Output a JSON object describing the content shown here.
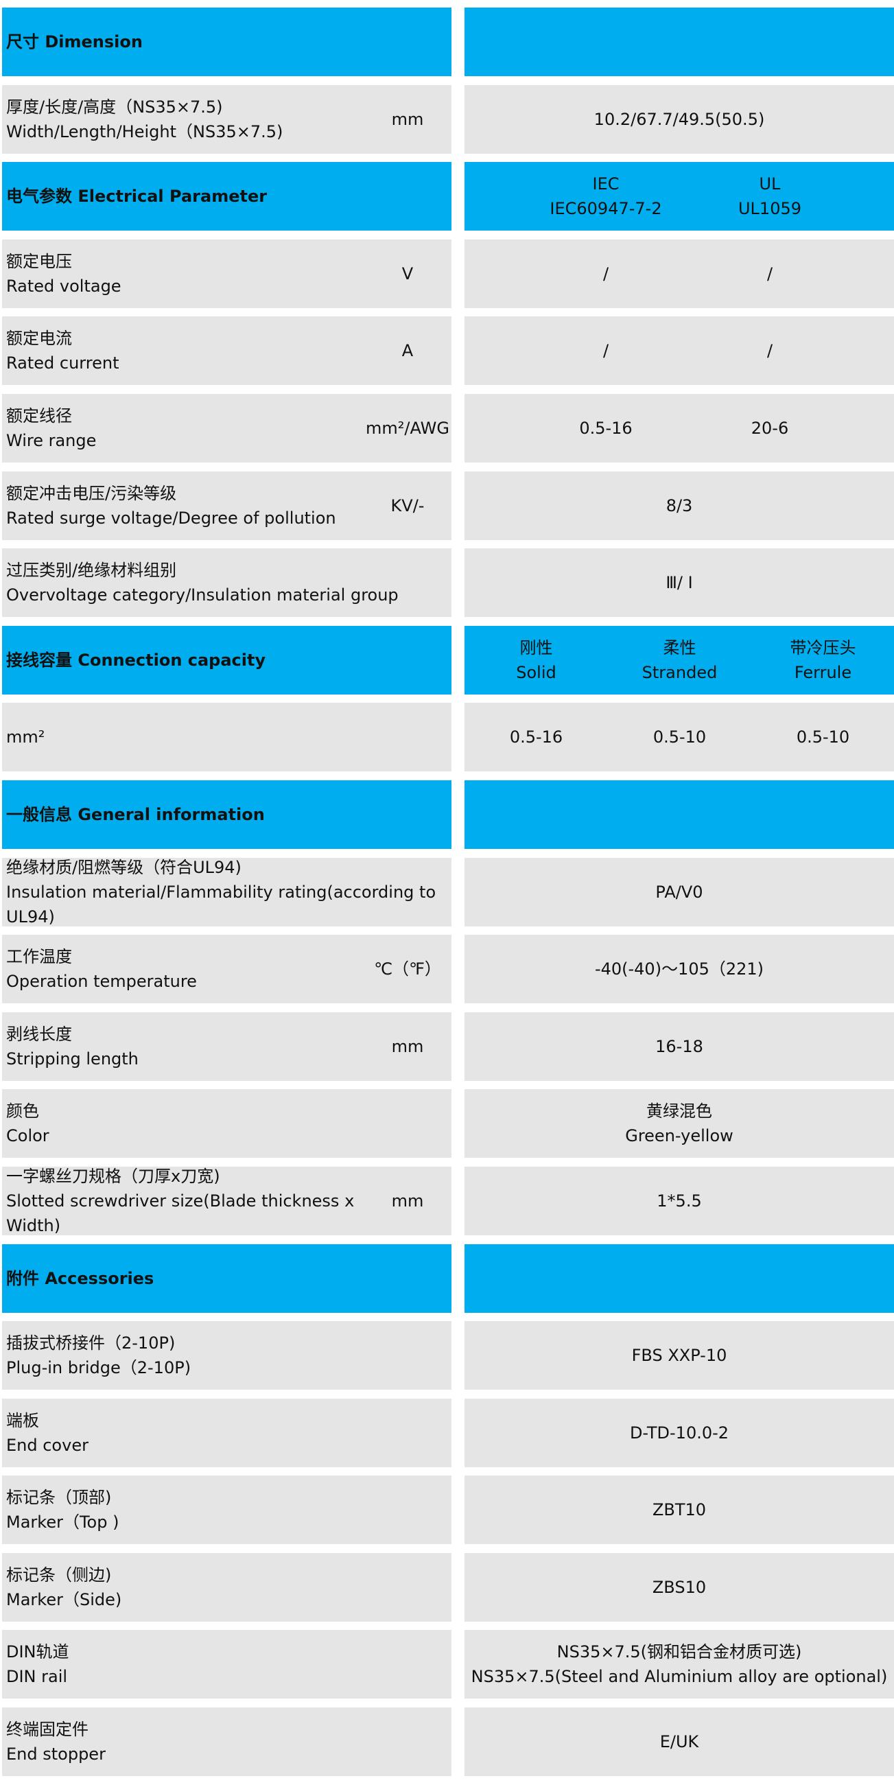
{
  "colors": {
    "header_bg": "#00AEEF",
    "row_bg": "#E6E5E6"
  },
  "rows": [
    {
      "type": "header",
      "label": [
        "尺寸 Dimension"
      ],
      "values": []
    },
    {
      "type": "data",
      "label": [
        "厚度/长度/高度（NS35×7.5)",
        "Width/Length/Height（NS35×7.5)"
      ],
      "unit": "mm",
      "values": [
        [
          "10.2/67.7/49.5(50.5)"
        ]
      ]
    },
    {
      "type": "header",
      "label": [
        "电气参数 Electrical Parameter"
      ],
      "layout": "two",
      "values": [
        [
          "IEC",
          "IEC60947-7-2"
        ],
        [
          "UL",
          "UL1059"
        ]
      ]
    },
    {
      "type": "data",
      "label": [
        "额定电压",
        "Rated voltage"
      ],
      "unit": "V",
      "layout": "two",
      "values": [
        [
          "/"
        ],
        [
          "/"
        ]
      ]
    },
    {
      "type": "data",
      "label": [
        "额定电流",
        "Rated current"
      ],
      "unit": "A",
      "layout": "two",
      "values": [
        [
          "/"
        ],
        [
          "/"
        ]
      ]
    },
    {
      "type": "data",
      "label": [
        "额定线径",
        "Wire range"
      ],
      "unit": "mm²/AWG",
      "layout": "two",
      "values": [
        [
          "0.5-16"
        ],
        [
          "20-6"
        ]
      ]
    },
    {
      "type": "data",
      "label": [
        "额定冲击电压/污染等级",
        "Rated surge voltage/Degree of pollution"
      ],
      "unit": "KV/-",
      "values": [
        [
          "8/3"
        ]
      ]
    },
    {
      "type": "data",
      "label": [
        "过压类别/绝缘材料组别",
        "Overvoltage category/Insulation material group"
      ],
      "values": [
        [
          "Ⅲ/ Ⅰ"
        ]
      ]
    },
    {
      "type": "header",
      "label": [
        "接线容量 Connection capacity"
      ],
      "layout": "three",
      "values": [
        [
          "刚性",
          "Solid"
        ],
        [
          "柔性",
          "Stranded"
        ],
        [
          "带冷压头",
          "Ferrule"
        ]
      ]
    },
    {
      "type": "data",
      "label": [
        "mm²"
      ],
      "layout": "three",
      "values": [
        [
          "0.5-16"
        ],
        [
          "0.5-10"
        ],
        [
          "0.5-10"
        ]
      ]
    },
    {
      "type": "header",
      "label": [
        "一般信息 General information"
      ],
      "values": []
    },
    {
      "type": "data",
      "label": [
        "绝缘材质/阻燃等级（符合UL94)",
        "Insulation material/Flammability rating(according to UL94)"
      ],
      "values": [
        [
          "PA/V0"
        ]
      ]
    },
    {
      "type": "data",
      "label": [
        "工作温度",
        "Operation temperature"
      ],
      "unit": "℃（℉）",
      "values": [
        [
          "-40(-40)～105（221)"
        ]
      ]
    },
    {
      "type": "data",
      "label": [
        "剥线长度",
        "Stripping length"
      ],
      "unit": "mm",
      "values": [
        [
          "16-18"
        ]
      ]
    },
    {
      "type": "data",
      "label": [
        "颜色",
        "Color"
      ],
      "values": [
        [
          "黄绿混色",
          "Green-yellow"
        ]
      ]
    },
    {
      "type": "data",
      "label": [
        "一字螺丝刀规格（刀厚x刀宽)",
        "Slotted screwdriver size(Blade thickness x Width)"
      ],
      "unit": "mm",
      "values": [
        [
          "1*5.5"
        ]
      ]
    },
    {
      "type": "header",
      "label": [
        "附件 Accessories"
      ],
      "values": []
    },
    {
      "type": "data",
      "label": [
        "插拔式桥接件（2-10P)",
        "Plug-in bridge（2-10P)"
      ],
      "values": [
        [
          "FBS XXP-10"
        ]
      ]
    },
    {
      "type": "data",
      "label": [
        "端板",
        "End cover"
      ],
      "values": [
        [
          "D-TD-10.0-2"
        ]
      ]
    },
    {
      "type": "data",
      "label": [
        "标记条（顶部)",
        "Marker（Top )"
      ],
      "values": [
        [
          "ZBT10"
        ]
      ]
    },
    {
      "type": "data",
      "label": [
        "标记条（侧边)",
        "Marker（Side)"
      ],
      "values": [
        [
          "ZBS10"
        ]
      ]
    },
    {
      "type": "data",
      "label": [
        "DIN轨道",
        "DIN rail"
      ],
      "values": [
        [
          "NS35×7.5(钢和铝合金材质可选)",
          "NS35×7.5(Steel and Aluminium alloy are optional)"
        ]
      ]
    },
    {
      "type": "data",
      "label": [
        "终端固定件",
        "End stopper"
      ],
      "values": [
        [
          "E/UK"
        ]
      ]
    }
  ]
}
